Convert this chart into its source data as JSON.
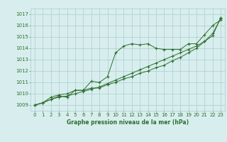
{
  "xlabel": "Graphe pression niveau de la mer (hPa)",
  "x_values": [
    0,
    1,
    2,
    3,
    4,
    5,
    6,
    7,
    8,
    9,
    10,
    11,
    12,
    13,
    14,
    15,
    16,
    17,
    18,
    19,
    20,
    21,
    22,
    23
  ],
  "series1": [
    1009.0,
    1009.2,
    1009.5,
    1009.8,
    1009.7,
    1010.3,
    1010.3,
    1011.1,
    1011.0,
    1011.5,
    1013.6,
    1014.2,
    1014.4,
    1014.3,
    1014.4,
    1014.0,
    1013.9,
    1013.9,
    1013.9,
    1014.4,
    1014.4,
    1015.2,
    1016.0,
    1016.5
  ],
  "series2": [
    1009.0,
    1009.2,
    1009.7,
    1009.9,
    1010.0,
    1010.3,
    1010.3,
    1010.5,
    1010.5,
    1010.8,
    1011.0,
    1011.3,
    1011.5,
    1011.8,
    1012.0,
    1012.3,
    1012.5,
    1012.9,
    1013.2,
    1013.6,
    1014.0,
    1014.6,
    1015.3,
    1016.6
  ],
  "series3": [
    1009.0,
    1009.2,
    1009.5,
    1009.7,
    1009.8,
    1010.0,
    1010.2,
    1010.4,
    1010.6,
    1010.9,
    1011.2,
    1011.5,
    1011.8,
    1012.1,
    1012.4,
    1012.7,
    1013.0,
    1013.3,
    1013.6,
    1013.9,
    1014.2,
    1014.6,
    1015.1,
    1016.7
  ],
  "line_color": "#2d6e2d",
  "marker_color": "#2d6e2d",
  "bg_color": "#d8eeee",
  "grid_color": "#aacccc",
  "text_color": "#2d6e2d",
  "ylim_min": 1008.5,
  "ylim_max": 1017.5,
  "xlim_min": -0.5,
  "xlim_max": 23.5,
  "yticks": [
    1009,
    1010,
    1011,
    1012,
    1013,
    1014,
    1015,
    1016,
    1017
  ],
  "xticks": [
    0,
    1,
    2,
    3,
    4,
    5,
    6,
    7,
    8,
    9,
    10,
    11,
    12,
    13,
    14,
    15,
    16,
    17,
    18,
    19,
    20,
    21,
    22,
    23
  ],
  "tick_fontsize": 5.0,
  "xlabel_fontsize": 5.5
}
